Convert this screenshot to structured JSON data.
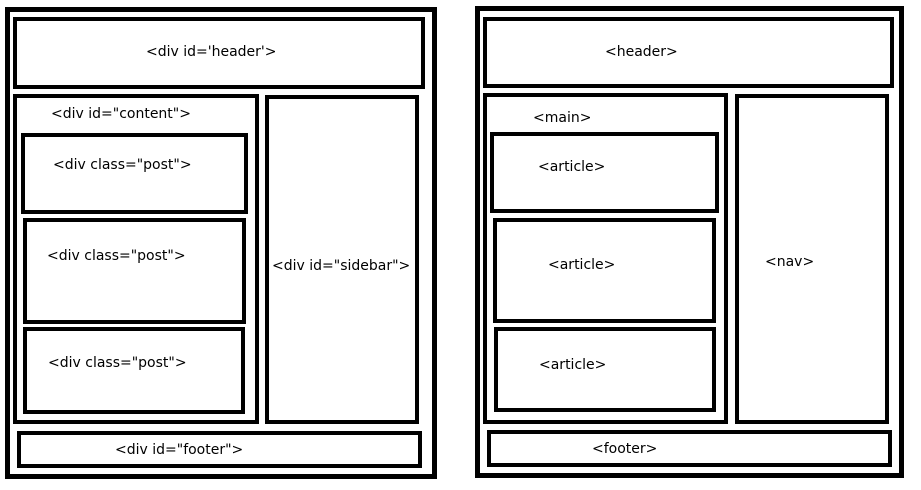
{
  "left": {
    "header": "<div id='header'>",
    "content": "<div id=\"content\">",
    "posts": [
      "<div class=\"post\">",
      "<div class=\"post\">",
      "<div class=\"post\">"
    ],
    "sidebar": "<div id=\"sidebar\">",
    "footer": "<div id=\"footer\">"
  },
  "right": {
    "header": "<header>",
    "main": "<main>",
    "articles": [
      "<article>",
      "<article>",
      "<article>"
    ],
    "nav": "<nav>",
    "footer": "<footer>"
  }
}
